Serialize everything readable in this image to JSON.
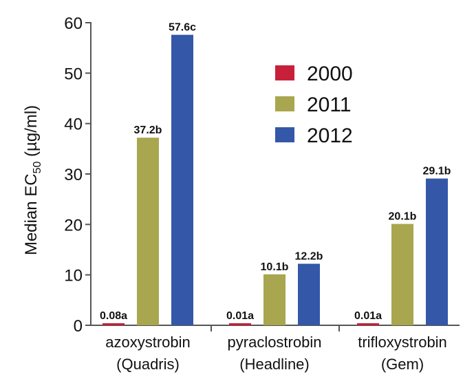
{
  "chart_data": {
    "type": "bar",
    "ylabel": {
      "prefix": "Median EC",
      "sub": "50",
      "suffix": " (µg/ml)"
    },
    "ylim": [
      0,
      60
    ],
    "yticks": [
      "0",
      "10",
      "20",
      "30",
      "40",
      "50",
      "60"
    ],
    "categories": [
      {
        "line1": "azoxystrobin",
        "line2": "(Quadris)"
      },
      {
        "line1": "pyraclostrobin",
        "line2": "(Headline)"
      },
      {
        "line1": "trifloxystrobin",
        "line2": "(Gem)"
      }
    ],
    "series": [
      {
        "name": "2000",
        "color": "#c8203a",
        "values": [
          0.08,
          0.01,
          0.01
        ],
        "labels": [
          "0.08a",
          "0.01a",
          "0.01a"
        ]
      },
      {
        "name": "2011",
        "color": "#a8a64f",
        "values": [
          37.2,
          10.1,
          20.1
        ],
        "labels": [
          "37.2b",
          "10.1b",
          "20.1b"
        ]
      },
      {
        "name": "2012",
        "color": "#3457a8",
        "values": [
          57.6,
          12.2,
          29.1
        ],
        "labels": [
          "57.6c",
          "12.2b",
          "29.1b"
        ]
      }
    ],
    "legend": "top-right",
    "grid": false
  }
}
